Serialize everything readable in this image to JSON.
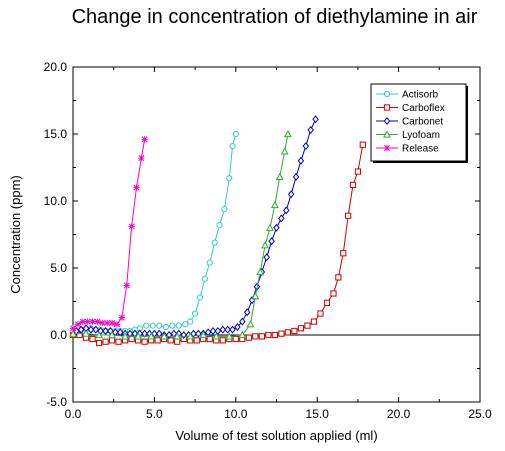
{
  "chart_data": {
    "type": "line",
    "title": "Change in concentration of diethylamine in air",
    "xlabel": "Volume of test solution applied (ml)",
    "ylabel": "Concentration (ppm)",
    "xlim": [
      0,
      25
    ],
    "ylim": [
      -5,
      20
    ],
    "xticks": [
      "0.0",
      "5.0",
      "10.0",
      "15.0",
      "20.0",
      "25.0"
    ],
    "yticks": [
      "-5.0",
      "0.0",
      "5.0",
      "10.0",
      "15.0",
      "20.0"
    ],
    "zero_line": true,
    "grid": false,
    "legend_position": "top-right",
    "series": [
      {
        "name": "Actisorb",
        "color": "#33cccc",
        "marker": "circle",
        "x": [
          0.2,
          0.5,
          0.8,
          1.1,
          1.4,
          1.7,
          2.0,
          2.3,
          2.6,
          2.9,
          3.2,
          3.5,
          3.8,
          4.1,
          4.5,
          4.9,
          5.3,
          5.7,
          6.1,
          6.5,
          6.9,
          7.2,
          7.5,
          7.8,
          8.1,
          8.4,
          8.7,
          9.0,
          9.3,
          9.6,
          9.8,
          10.0
        ],
        "y": [
          0.3,
          0.4,
          0.4,
          0.5,
          0.4,
          0.4,
          0.3,
          0.3,
          0.3,
          0.3,
          0.3,
          0.3,
          0.4,
          0.5,
          0.7,
          0.7,
          0.7,
          0.6,
          0.7,
          0.7,
          0.8,
          1.0,
          1.6,
          2.8,
          4.2,
          5.4,
          6.9,
          8.2,
          9.4,
          11.7,
          14.1,
          15.0
        ]
      },
      {
        "name": "Carboflex",
        "color": "#cc0000",
        "marker": "square",
        "x": [
          0.0,
          0.4,
          0.8,
          1.2,
          1.6,
          2.0,
          2.4,
          2.8,
          3.2,
          3.6,
          4.0,
          4.4,
          4.8,
          5.2,
          5.6,
          6.0,
          6.4,
          6.8,
          7.2,
          7.6,
          8.0,
          8.4,
          8.8,
          9.2,
          9.6,
          10.0,
          10.4,
          10.8,
          11.2,
          11.6,
          12.0,
          12.4,
          12.8,
          13.2,
          13.6,
          14.0,
          14.4,
          14.8,
          15.2,
          15.6,
          16.0,
          16.3,
          16.6,
          16.9,
          17.2,
          17.5,
          17.8
        ],
        "y": [
          0.0,
          0.0,
          -0.2,
          -0.3,
          -0.6,
          -0.5,
          -0.4,
          -0.5,
          -0.4,
          -0.3,
          -0.4,
          -0.5,
          -0.4,
          -0.4,
          -0.3,
          -0.4,
          -0.5,
          -0.3,
          -0.4,
          -0.4,
          -0.3,
          -0.3,
          -0.4,
          -0.4,
          -0.3,
          -0.3,
          -0.3,
          -0.2,
          -0.1,
          -0.1,
          0.0,
          0.0,
          0.1,
          0.2,
          0.3,
          0.5,
          0.7,
          1.0,
          1.6,
          2.4,
          3.1,
          4.3,
          6.1,
          8.9,
          11.2,
          12.2,
          14.2
        ]
      },
      {
        "name": "Carbonet",
        "color": "#0000cc",
        "marker": "diamond",
        "x": [
          0.2,
          0.5,
          0.8,
          1.1,
          1.4,
          1.7,
          2.0,
          2.3,
          2.6,
          2.9,
          3.2,
          3.5,
          3.8,
          4.1,
          4.4,
          4.7,
          5.0,
          5.3,
          5.6,
          5.9,
          6.2,
          6.5,
          6.8,
          7.1,
          7.4,
          7.7,
          8.0,
          8.3,
          8.6,
          8.9,
          9.2,
          9.5,
          9.8,
          10.1,
          10.4,
          10.7,
          11.0,
          11.3,
          11.6,
          11.9,
          12.2,
          12.5,
          12.8,
          13.1,
          13.4,
          13.7,
          14.0,
          14.3,
          14.6,
          14.9
        ],
        "y": [
          0.3,
          0.4,
          0.5,
          0.4,
          0.4,
          0.3,
          0.3,
          0.3,
          0.2,
          0.2,
          0.1,
          0.1,
          0.1,
          0.1,
          0.1,
          0.1,
          0.1,
          0.1,
          0.0,
          0.0,
          0.1,
          0.1,
          0.0,
          0.0,
          0.1,
          0.1,
          0.1,
          0.2,
          0.3,
          0.3,
          0.4,
          0.4,
          0.4,
          0.6,
          1.0,
          1.7,
          2.6,
          3.6,
          4.7,
          5.8,
          7.0,
          8.0,
          8.7,
          9.3,
          10.5,
          11.8,
          13.0,
          14.1,
          15.3,
          16.1
        ]
      },
      {
        "name": "Lyofoam",
        "color": "#33aa33",
        "marker": "triangle",
        "x": [
          0.0,
          0.8,
          1.6,
          2.4,
          3.2,
          4.0,
          4.8,
          5.6,
          6.4,
          7.2,
          8.0,
          8.8,
          9.6,
          10.4,
          10.9,
          11.2,
          11.5,
          11.8,
          12.1,
          12.4,
          12.7,
          13.0,
          13.2
        ],
        "y": [
          0.1,
          0.1,
          0.0,
          0.0,
          -0.1,
          -0.1,
          -0.1,
          -0.1,
          -0.1,
          -0.1,
          0.0,
          -0.1,
          -0.1,
          0.0,
          0.8,
          2.9,
          4.7,
          6.7,
          8.0,
          9.7,
          11.8,
          13.7,
          15.0
        ]
      },
      {
        "name": "Release",
        "color": "#ff00cc",
        "marker": "star",
        "x": [
          0.0,
          0.3,
          0.6,
          0.9,
          1.2,
          1.5,
          1.8,
          2.1,
          2.4,
          2.7,
          3.0,
          3.3,
          3.6,
          3.9,
          4.2,
          4.4
        ],
        "y": [
          0.5,
          0.8,
          1.0,
          1.0,
          1.0,
          1.0,
          0.9,
          0.9,
          0.9,
          0.8,
          1.3,
          3.7,
          8.1,
          11.0,
          13.2,
          14.6
        ]
      }
    ]
  }
}
